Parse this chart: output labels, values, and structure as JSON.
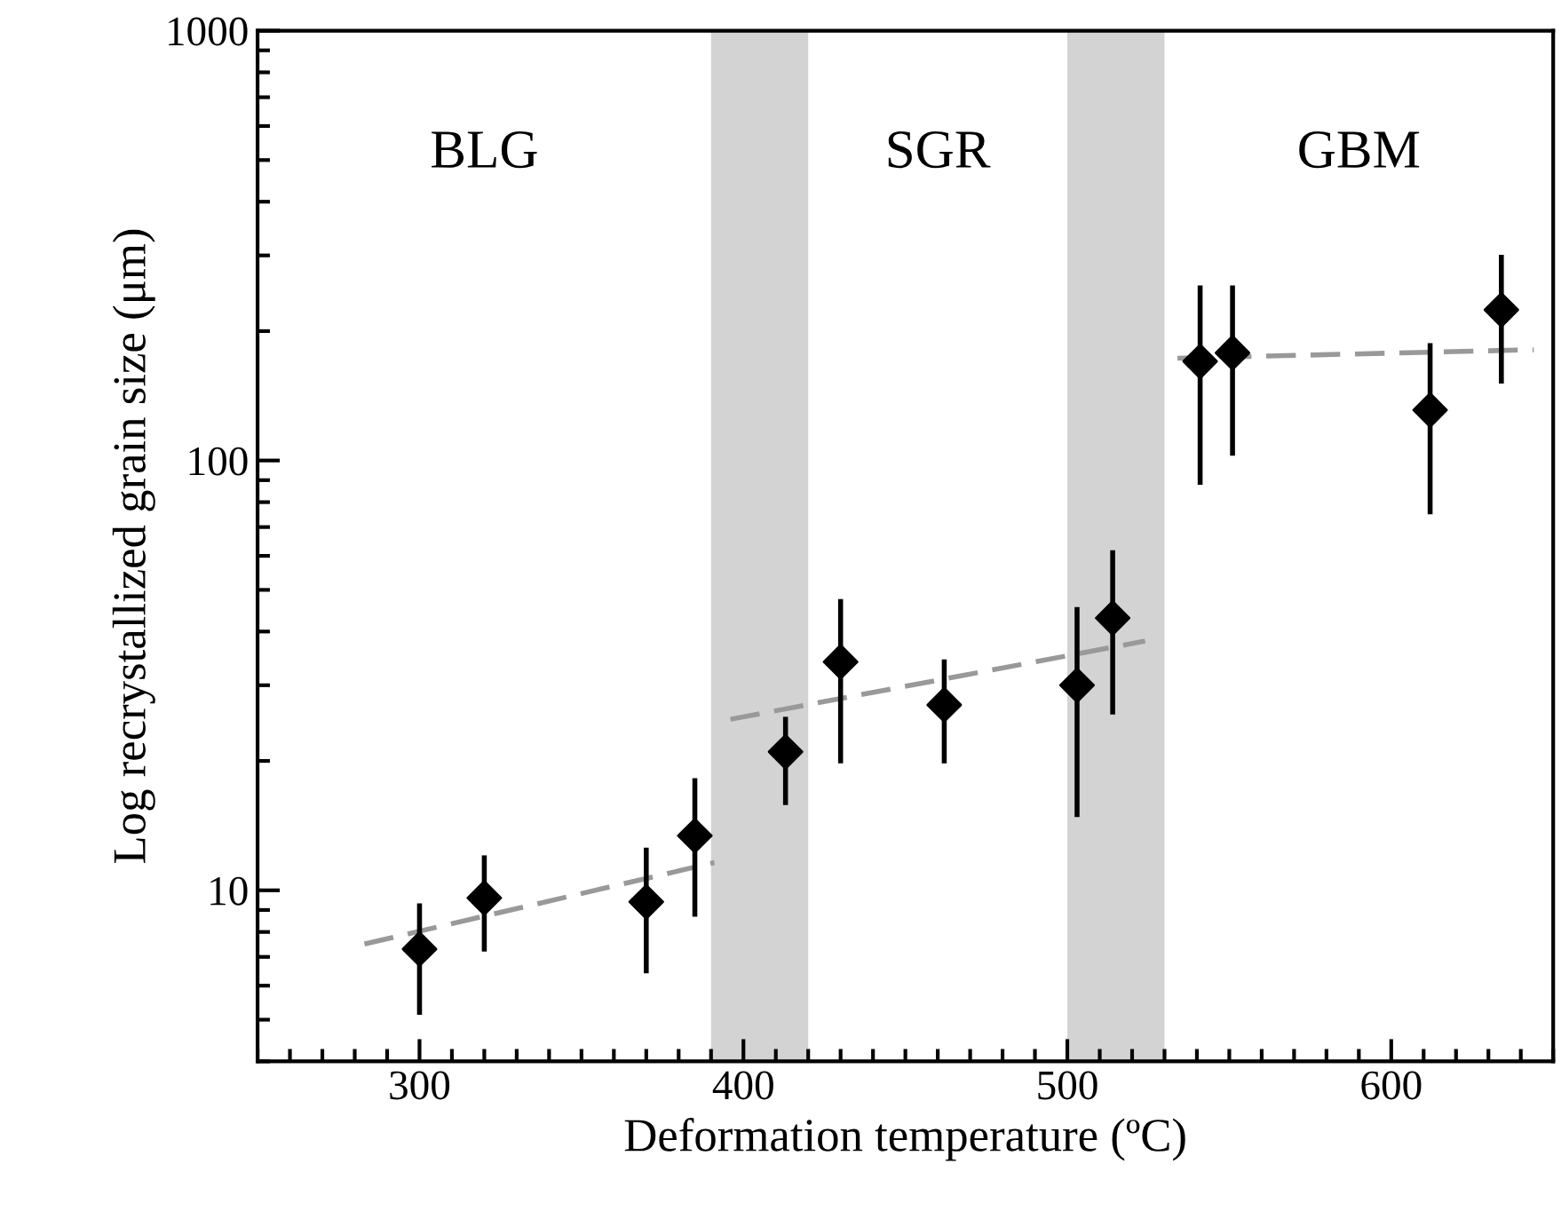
{
  "chart_data": {
    "type": "scatter",
    "xlabel": "Deformation temperature (ºC)",
    "ylabel": "Log recrystallized grain size (μm)",
    "xlim": [
      250,
      650
    ],
    "xticks": [
      300,
      400,
      500,
      600
    ],
    "ylim": [
      4,
      1000
    ],
    "yticks": [
      10,
      100,
      1000
    ],
    "log": "y",
    "grid": false,
    "series": [
      {
        "type": "scatter",
        "color": "#000000",
        "marker": "diamond",
        "x": [
          300,
          320,
          370,
          385,
          413,
          430,
          462,
          503,
          514,
          541,
          551,
          612,
          634
        ],
        "values": [
          7.3,
          9.6,
          9.4,
          13.4,
          21,
          34,
          27,
          30,
          43,
          170,
          178,
          131,
          224
        ],
        "errors": [
          [
            5.2,
            9.2
          ],
          [
            7.3,
            11.9
          ],
          [
            6.5,
            12.4
          ],
          [
            8.8,
            18
          ],
          [
            16,
            25
          ],
          [
            20,
            47
          ],
          [
            20,
            34
          ],
          [
            15,
            45
          ],
          [
            26,
            61
          ],
          [
            89,
            252
          ],
          [
            104,
            252
          ],
          [
            76,
            185
          ],
          [
            153,
            297
          ]
        ]
      },
      {
        "type": "line",
        "color": "#999999",
        "line_style": "dashed",
        "marker": "none",
        "x": [
          283,
          391
        ],
        "values": [
          7.5,
          11.6
        ]
      },
      {
        "type": "line",
        "color": "#999999",
        "line_style": "dashed",
        "marker": "none",
        "x": [
          396,
          524
        ],
        "values": [
          25,
          38
        ]
      },
      {
        "type": "line",
        "color": "#999999",
        "line_style": "dashed",
        "marker": "none",
        "x": [
          534,
          644
        ],
        "values": [
          173,
          181
        ]
      }
    ],
    "bands": [
      {
        "axis": "x",
        "from": 390,
        "to": 420,
        "color": "#d3d3d3"
      },
      {
        "axis": "x",
        "from": 500,
        "to": 530,
        "color": "#d3d3d3"
      }
    ],
    "annotations": [
      "BLG",
      "SGR",
      "GBM"
    ]
  }
}
